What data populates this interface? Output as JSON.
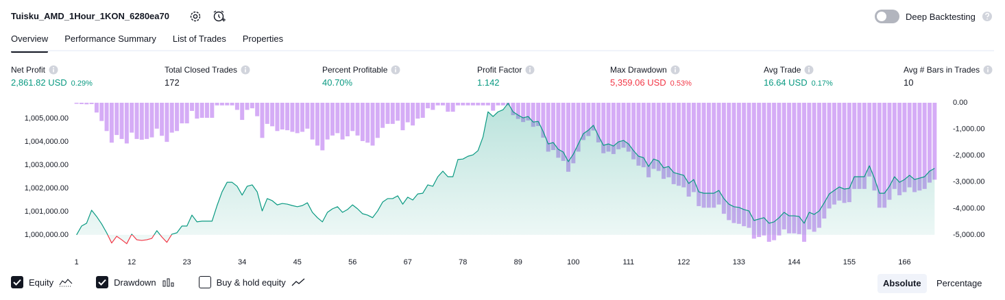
{
  "header": {
    "title": "Tuisku_AMD_1Hour_1KON_6280ea70",
    "toggle_label": "Deep Backtesting",
    "toggle_on": false
  },
  "tabs": [
    "Overview",
    "Performance Summary",
    "List of Trades",
    "Properties"
  ],
  "active_tab": 0,
  "metrics": [
    {
      "label": "Net Profit",
      "value": "2,861.82 USD",
      "percent": "0.29%",
      "color": "#089981"
    },
    {
      "label": "Total Closed Trades",
      "value": "172",
      "color": "#131722"
    },
    {
      "label": "Percent Profitable",
      "value": "40.70%",
      "color": "#089981"
    },
    {
      "label": "Profit Factor",
      "value": "1.142",
      "color": "#089981"
    },
    {
      "label": "Max Drawdown",
      "value": "5,359.06 USD",
      "percent": "0.53%",
      "color": "#f23645"
    },
    {
      "label": "Avg Trade",
      "value": "16.64 USD",
      "percent": "0.17%",
      "color": "#089981"
    },
    {
      "label": "Avg # Bars in Trades",
      "value": "10",
      "color": "#131722"
    }
  ],
  "chart_data": {
    "type": "combo",
    "x": [
      1,
      2,
      3,
      4,
      5,
      6,
      7,
      8,
      9,
      10,
      11,
      12,
      13,
      14,
      15,
      16,
      17,
      18,
      19,
      20,
      21,
      22,
      23,
      24,
      25,
      26,
      27,
      28,
      29,
      30,
      31,
      32,
      33,
      34,
      35,
      36,
      37,
      38,
      39,
      40,
      41,
      42,
      43,
      44,
      45,
      46,
      47,
      48,
      49,
      50,
      51,
      52,
      53,
      54,
      55,
      56,
      57,
      58,
      59,
      60,
      61,
      62,
      63,
      64,
      65,
      66,
      67,
      68,
      69,
      70,
      71,
      72,
      73,
      74,
      75,
      76,
      77,
      78,
      79,
      80,
      81,
      82,
      83,
      84,
      85,
      86,
      87,
      88,
      89,
      90,
      91,
      92,
      93,
      94,
      95,
      96,
      97,
      98,
      99,
      100,
      101,
      102,
      103,
      104,
      105,
      106,
      107,
      108,
      109,
      110,
      111,
      112,
      113,
      114,
      115,
      116,
      117,
      118,
      119,
      120,
      121,
      122,
      123,
      124,
      125,
      126,
      127,
      128,
      129,
      130,
      131,
      132,
      133,
      134,
      135,
      136,
      137,
      138,
      139,
      140,
      141,
      142,
      143,
      144,
      145,
      146,
      147,
      148,
      149,
      150,
      151,
      152,
      153,
      154,
      155,
      156,
      157,
      158,
      159,
      160,
      161,
      162,
      163,
      164,
      165,
      166,
      167,
      168,
      169,
      170,
      171,
      172
    ],
    "xlim": [
      0.5,
      172.5
    ],
    "xticks": [
      1,
      12,
      23,
      34,
      45,
      56,
      67,
      78,
      89,
      100,
      111,
      122,
      133,
      144,
      155,
      166
    ],
    "ylim": [
      999350,
      1005680
    ],
    "yticks": [
      {
        "value": 1000000,
        "label": "1,000,000.00"
      },
      {
        "value": 1001000,
        "label": "1,001,000.00"
      },
      {
        "value": 1002000,
        "label": "1,002,000.00"
      },
      {
        "value": 1003000,
        "label": "1,003,000.00"
      },
      {
        "value": 1004000,
        "label": "1,004,000.00"
      },
      {
        "value": 1005000,
        "label": "1,005,000.00"
      }
    ],
    "y2lim": [
      -5570,
      0
    ],
    "y2ticks": [
      {
        "value": 0,
        "label": "0.00"
      },
      {
        "value": -1000,
        "label": "-1,000.00"
      },
      {
        "value": -2000,
        "label": "-2,000.00"
      },
      {
        "value": -3000,
        "label": "-3,000.00"
      },
      {
        "value": -4000,
        "label": "-4,000.00"
      },
      {
        "value": -5000,
        "label": "-5,000.00"
      }
    ],
    "grid": false,
    "series": [
      {
        "name": "Equity",
        "type": "area",
        "shown": true,
        "color": "#089981",
        "negative_color": "#f23645",
        "values": [
          1000000,
          1000380,
          1000500,
          1001060,
          1000790,
          1000470,
          1000090,
          999650,
          999940,
          999790,
          999620,
          1000030,
          999790,
          999760,
          999790,
          999850,
          1000180,
          999910,
          999680,
          1000030,
          1000090,
          1000380,
          1000380,
          1000850,
          1000560,
          1000590,
          1000590,
          1000590,
          1001260,
          1001850,
          1002260,
          1002260,
          1002090,
          1001710,
          1002090,
          1002150,
          1001850,
          1001030,
          1001560,
          1001470,
          1001290,
          1001350,
          1001320,
          1001260,
          1001210,
          1001260,
          1001380,
          1000970,
          1000740,
          1000560,
          1000970,
          1001120,
          1001210,
          1000970,
          1001090,
          1001290,
          1001120,
          1000910,
          1000850,
          1000740,
          1001030,
          1001410,
          1001560,
          1001560,
          1001680,
          1001320,
          1001620,
          1001500,
          1001760,
          1001790,
          1002150,
          1002090,
          1002500,
          1002740,
          1002500,
          1002500,
          1003240,
          1003260,
          1003380,
          1003440,
          1003620,
          1004210,
          1005290,
          1005090,
          1005290,
          1005380,
          1005660,
          1005290,
          1005150,
          1005030,
          1005090,
          1004850,
          1004880,
          1004440,
          1003910,
          1003970,
          1003680,
          1003560,
          1003150,
          1003470,
          1003910,
          1004350,
          1004500,
          1004710,
          1004260,
          1003850,
          1003910,
          1003820,
          1004000,
          1004060,
          1003910,
          1003620,
          1003380,
          1003320,
          1002940,
          1003260,
          1003180,
          1002880,
          1002940,
          1002680,
          1002620,
          1002560,
          1002210,
          1002380,
          1001850,
          1001790,
          1001790,
          1001790,
          1001910,
          1001560,
          1001320,
          1001210,
          1001180,
          1001090,
          1001030,
          1000620,
          1000680,
          1000740,
          1000500,
          1000560,
          1000740,
          1000970,
          1000820,
          1000820,
          1000790,
          1000500,
          1000970,
          1000880,
          1001030,
          1001380,
          1001760,
          1001910,
          1002060,
          1001970,
          1002000,
          1002500,
          1002500,
          1002500,
          1002970,
          1002440,
          1001790,
          1001790,
          1002090,
          1002500,
          1002260,
          1002380,
          1002560,
          1002380,
          1002440,
          1002500,
          1002740,
          1002860
        ]
      },
      {
        "name": "Drawdown",
        "type": "bar",
        "axis": "y2",
        "shown": true,
        "color": "#ce9ef5",
        "values": [
          -40,
          -50,
          -60,
          -50,
          -370,
          -690,
          -1070,
          -1510,
          -1220,
          -1370,
          -1540,
          -1130,
          -1370,
          -1400,
          -1370,
          -1310,
          -980,
          -1250,
          -1480,
          -1130,
          -1070,
          -780,
          -780,
          -310,
          -600,
          -570,
          -570,
          -570,
          -100,
          -100,
          -100,
          -100,
          -270,
          -650,
          -270,
          -210,
          -510,
          -1330,
          -800,
          -890,
          -1070,
          -1010,
          -1040,
          -1100,
          -1150,
          -1100,
          -980,
          -1390,
          -1620,
          -1800,
          -1390,
          -1240,
          -1150,
          -1390,
          -1270,
          -1070,
          -1240,
          -1450,
          -1510,
          -1620,
          -1330,
          -950,
          -800,
          -800,
          -680,
          -1040,
          -740,
          -860,
          -600,
          -570,
          -210,
          -270,
          -100,
          -100,
          -340,
          -340,
          -100,
          -100,
          -100,
          -100,
          -100,
          -100,
          -100,
          -300,
          -100,
          -100,
          -100,
          -470,
          -610,
          -730,
          -670,
          -910,
          -880,
          -1320,
          -1850,
          -1790,
          -2080,
          -2200,
          -2610,
          -2290,
          -1850,
          -1410,
          -1260,
          -1050,
          -1500,
          -1910,
          -1850,
          -1940,
          -1760,
          -1700,
          -1850,
          -2140,
          -2380,
          -2440,
          -2820,
          -2500,
          -2580,
          -2880,
          -2820,
          -3080,
          -3140,
          -3200,
          -3550,
          -3380,
          -3910,
          -3970,
          -3970,
          -3970,
          -3850,
          -4200,
          -4440,
          -4550,
          -4580,
          -4670,
          -4730,
          -5140,
          -5080,
          -5020,
          -5260,
          -5200,
          -5020,
          -4790,
          -4940,
          -4940,
          -4970,
          -5260,
          -4790,
          -4880,
          -4730,
          -4380,
          -4000,
          -3850,
          -3700,
          -3790,
          -3760,
          -3260,
          -3260,
          -3260,
          -2790,
          -3320,
          -3970,
          -3970,
          -3670,
          -3260,
          -3500,
          -3380,
          -3200,
          -3380,
          -3320,
          -3260,
          -3020,
          -2910
        ]
      }
    ]
  },
  "controls": {
    "buy_hold": {
      "label": "Buy & hold equity",
      "checked": false
    },
    "buttons": [
      "Absolute",
      "Percentage"
    ],
    "active_button": 0
  }
}
